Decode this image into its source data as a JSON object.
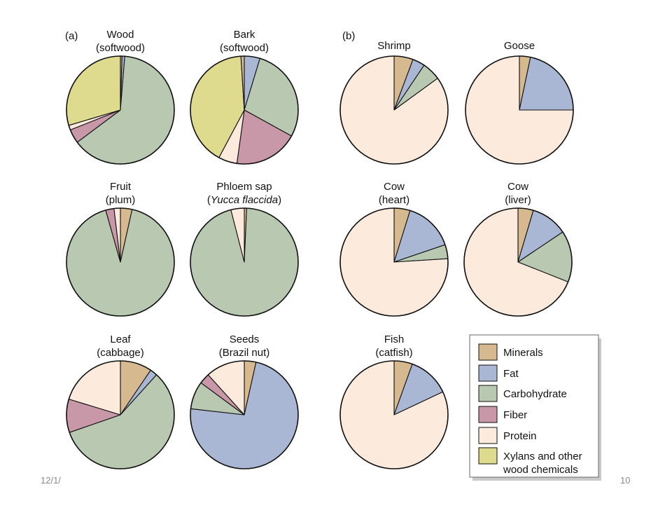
{
  "slide": {
    "date": "12/1/",
    "page_number": "10"
  },
  "colors": {
    "minerals": "#d6b98f",
    "fat": "#a9b7d4",
    "carbohydrate": "#b9c9b1",
    "fiber": "#c898a9",
    "protein": "#fcebdc",
    "xylans": "#dedb8f",
    "outline": "#111111"
  },
  "legend": {
    "items": [
      {
        "key": "minerals",
        "label": "Minerals"
      },
      {
        "key": "fat",
        "label": "Fat"
      },
      {
        "key": "carbohydrate",
        "label": "Carbohydrate"
      },
      {
        "key": "fiber",
        "label": "Fiber"
      },
      {
        "key": "protein",
        "label": "Protein"
      },
      {
        "key": "xylans",
        "label": "Xylans and other",
        "label2": "wood chemicals"
      }
    ]
  },
  "panels": [
    {
      "label": "(a)"
    },
    {
      "label": "(b)"
    }
  ],
  "chart_data": [
    {
      "type": "pie",
      "title": "Wood",
      "subtitle": "(softwood)",
      "slices": [
        {
          "key": "minerals",
          "value": 0.5
        },
        {
          "key": "fat",
          "value": 0.8
        },
        {
          "key": "carbohydrate",
          "value": 63.5
        },
        {
          "key": "fiber",
          "value": 4.2
        },
        {
          "key": "protein",
          "value": 1.4
        },
        {
          "key": "xylans",
          "value": 29.6
        }
      ]
    },
    {
      "type": "pie",
      "title": "Bark",
      "subtitle": "(softwood)",
      "slices": [
        {
          "key": "fat",
          "value": 4.7
        },
        {
          "key": "carbohydrate",
          "value": 28.3
        },
        {
          "key": "fiber",
          "value": 19.2
        },
        {
          "key": "protein",
          "value": 5.6
        },
        {
          "key": "xylans",
          "value": 41.2
        },
        {
          "key": "minerals",
          "value": 1.0
        }
      ]
    },
    {
      "type": "pie",
      "title": "Fruit",
      "subtitle": "(plum)",
      "slices": [
        {
          "key": "minerals",
          "value": 3.5
        },
        {
          "key": "carbohydrate",
          "value": 92.1
        },
        {
          "key": "fiber",
          "value": 2.5
        },
        {
          "key": "protein",
          "value": 1.9
        }
      ]
    },
    {
      "type": "pie",
      "title": "Phloem sap",
      "subtitle_pre": "(",
      "subtitle_italic": "Yucca flaccida",
      "subtitle_post": ")",
      "slices": [
        {
          "key": "minerals",
          "value": 0.7
        },
        {
          "key": "carbohydrate",
          "value": 95.3
        },
        {
          "key": "protein",
          "value": 4.0
        }
      ]
    },
    {
      "type": "pie",
      "title": "Leaf",
      "subtitle": "(cabbage)",
      "slices": [
        {
          "key": "minerals",
          "value": 9.5
        },
        {
          "key": "fat",
          "value": 2.2
        },
        {
          "key": "carbohydrate",
          "value": 58.0
        },
        {
          "key": "fiber",
          "value": 10.0
        },
        {
          "key": "protein",
          "value": 20.3
        }
      ]
    },
    {
      "type": "pie",
      "title": "Seeds",
      "subtitle": "(Brazil nut)",
      "slices": [
        {
          "key": "minerals",
          "value": 3.5
        },
        {
          "key": "fat",
          "value": 73.3
        },
        {
          "key": "carbohydrate",
          "value": 8.3
        },
        {
          "key": "fiber",
          "value": 3.2
        },
        {
          "key": "protein",
          "value": 11.7
        }
      ]
    },
    {
      "type": "pie",
      "title": "Shrimp",
      "slices": [
        {
          "key": "minerals",
          "value": 5.7
        },
        {
          "key": "fat",
          "value": 3.7
        },
        {
          "key": "carbohydrate",
          "value": 5.6
        },
        {
          "key": "protein",
          "value": 85.0
        }
      ]
    },
    {
      "type": "pie",
      "title": "Goose",
      "slices": [
        {
          "key": "minerals",
          "value": 3.3
        },
        {
          "key": "fat",
          "value": 21.7
        },
        {
          "key": "protein",
          "value": 75.0
        }
      ]
    },
    {
      "type": "pie",
      "title": "Cow",
      "subtitle": "(heart)",
      "slices": [
        {
          "key": "minerals",
          "value": 4.8
        },
        {
          "key": "fat",
          "value": 15.0
        },
        {
          "key": "carbohydrate",
          "value": 4.2
        },
        {
          "key": "protein",
          "value": 76.0
        }
      ]
    },
    {
      "type": "pie",
      "title": "Cow",
      "subtitle": "(liver)",
      "slices": [
        {
          "key": "minerals",
          "value": 4.6
        },
        {
          "key": "fat",
          "value": 11.0
        },
        {
          "key": "carbohydrate",
          "value": 15.4
        },
        {
          "key": "protein",
          "value": 69.0
        }
      ]
    },
    {
      "type": "pie",
      "title": "Fish",
      "subtitle": "(catfish)",
      "slices": [
        {
          "key": "minerals",
          "value": 5.5
        },
        {
          "key": "fat",
          "value": 12.5
        },
        {
          "key": "protein",
          "value": 82.0
        }
      ]
    }
  ]
}
